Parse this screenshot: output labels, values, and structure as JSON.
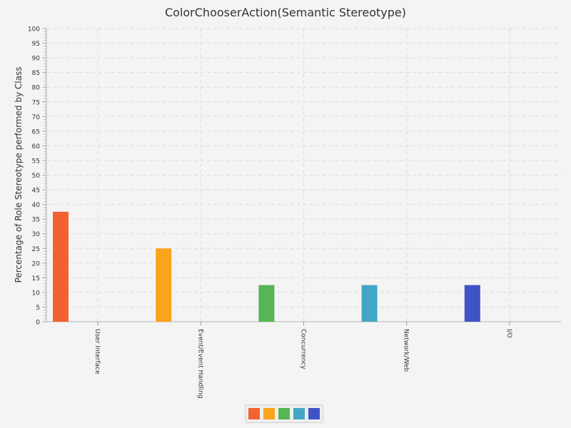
{
  "chart_data": {
    "type": "bar",
    "title": "ColorChooserAction(Semantic Stereotype)",
    "ylabel": "Percentage of Role Stereotype performed by Class",
    "xlabel": "",
    "categories": [
      "User Interface",
      "Event/Event Handling",
      "Concurrency",
      "Network/Web",
      "I/O"
    ],
    "values": [
      37.5,
      25.0,
      12.5,
      12.5,
      12.5
    ],
    "colors": [
      "#f26130",
      "#f9a41a",
      "#56b554",
      "#42a7c7",
      "#4053c6"
    ],
    "ylim": [
      0,
      100
    ],
    "ytick_step": 5,
    "grid": true,
    "legend_position": "bottom-center"
  }
}
